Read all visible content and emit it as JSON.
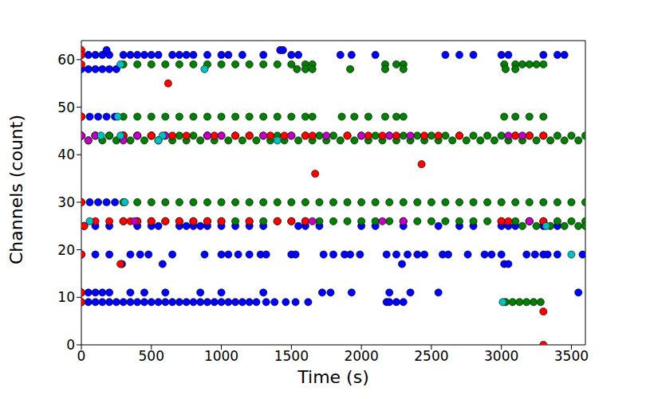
{
  "chart_data": {
    "type": "scatter",
    "xlabel": "Time (s)",
    "ylabel": "Channels (count)",
    "xlim": [
      0,
      3600
    ],
    "xticks": [
      0,
      500,
      1000,
      1500,
      2000,
      2500,
      3000,
      3500
    ],
    "ylim": [
      0,
      64
    ],
    "yticks": [
      0,
      10,
      20,
      30,
      40,
      50,
      60
    ],
    "marker": "circle",
    "grid": false,
    "series": [
      {
        "color": "#0000ff",
        "x": [
          0,
          50,
          100,
          150,
          200,
          300,
          350,
          400,
          450,
          500,
          550,
          650,
          700,
          750,
          800,
          900,
          1000,
          1050,
          1150,
          1300,
          1500,
          1550,
          1850,
          1930,
          2100,
          2600,
          2700,
          2800,
          3000,
          3050,
          3300,
          3400,
          3450,
          0,
          50,
          100,
          150,
          200,
          250,
          180,
          1420,
          1440,
          0,
          60,
          120,
          180,
          240,
          0,
          100,
          200,
          300,
          400,
          500,
          0,
          60,
          120,
          180,
          240,
          20,
          100,
          200,
          400,
          500,
          550,
          700,
          750,
          800,
          850,
          900,
          1000,
          1100,
          1200,
          1300,
          1550,
          1600,
          1700,
          2000,
          2100,
          2300,
          2550,
          2700,
          2800,
          3000,
          3050,
          3100,
          3300,
          3400,
          0,
          100,
          200,
          350,
          420,
          480,
          650,
          880,
          1000,
          1050,
          1120,
          1200,
          1280,
          1320,
          1500,
          1530,
          1730,
          1800,
          1880,
          1920,
          1990,
          2180,
          2250,
          2330,
          2400,
          2450,
          2580,
          2620,
          2760,
          2880,
          2930,
          3000,
          3180,
          3240,
          3300,
          3330,
          3400,
          3580,
          290,
          580,
          2290,
          3020,
          3050,
          0,
          50,
          100,
          150,
          200,
          350,
          450,
          600,
          850,
          1000,
          1300,
          1720,
          1780,
          1930,
          2200,
          2350,
          2550,
          3550,
          0,
          50,
          100,
          150,
          200,
          250,
          300,
          350,
          400,
          450,
          500,
          550,
          600,
          650,
          700,
          750,
          800,
          850,
          900,
          950,
          1000,
          1050,
          1100,
          1150,
          1200,
          1250,
          1320,
          1380,
          1460,
          1530,
          1620,
          2180,
          2200,
          2250,
          2300
        ],
        "values": [
          61,
          61,
          61,
          61,
          61,
          61,
          61,
          61,
          61,
          61,
          61,
          61,
          61,
          61,
          61,
          61,
          61,
          61,
          61,
          61,
          61,
          61,
          61,
          61,
          61,
          61,
          61,
          61,
          61,
          61,
          61,
          61,
          61,
          58,
          58,
          58,
          58,
          58,
          58,
          62,
          62,
          62,
          48,
          48,
          48,
          48,
          48,
          44,
          44,
          44,
          44,
          44,
          44,
          30,
          30,
          30,
          30,
          30,
          25,
          25,
          25,
          25,
          25,
          25,
          25,
          25,
          25,
          25,
          25,
          25,
          25,
          25,
          25,
          25,
          25,
          25,
          25,
          25,
          25,
          25,
          25,
          25,
          25,
          25,
          25,
          25,
          25,
          19,
          19,
          19,
          19,
          19,
          19,
          19,
          19,
          19,
          19,
          19,
          19,
          19,
          19,
          19,
          19,
          19,
          19,
          19,
          19,
          19,
          19,
          19,
          19,
          19,
          19,
          19,
          19,
          19,
          19,
          19,
          19,
          19,
          19,
          19,
          19,
          19,
          19,
          17,
          17,
          17,
          17,
          17,
          11,
          11,
          11,
          11,
          11,
          11,
          11,
          11,
          11,
          11,
          11,
          11,
          11,
          11,
          11,
          11,
          11,
          11,
          9,
          9,
          9,
          9,
          9,
          9,
          9,
          9,
          9,
          9,
          9,
          9,
          9,
          9,
          9,
          9,
          9,
          9,
          9,
          9,
          9,
          9,
          9,
          9,
          9,
          9,
          9,
          9,
          9,
          9,
          9,
          9,
          9,
          9,
          9
        ]
      },
      {
        "color": "#008000",
        "x": [
          300,
          400,
          500,
          600,
          700,
          800,
          900,
          1000,
          1100,
          1200,
          1300,
          1400,
          1500,
          1600,
          1650,
          2170,
          2250,
          2300,
          3020,
          3100,
          3150,
          3200,
          3250,
          3300,
          1540,
          1600,
          1650,
          1920,
          2170,
          2300,
          3030,
          3100,
          300,
          400,
          500,
          600,
          700,
          800,
          900,
          1000,
          1100,
          1200,
          1300,
          1400,
          1500,
          1600,
          1650,
          1860,
          1950,
          2050,
          2170,
          2250,
          2300,
          3020,
          3100,
          3200,
          3300,
          0,
          100,
          200,
          300,
          400,
          500,
          600,
          700,
          800,
          900,
          1000,
          1100,
          1200,
          1300,
          1400,
          1500,
          1600,
          1700,
          1800,
          1900,
          2000,
          2100,
          2200,
          2300,
          2400,
          2500,
          2600,
          2700,
          2800,
          2900,
          3000,
          3100,
          3200,
          3300,
          3400,
          3500,
          3600,
          50,
          150,
          250,
          350,
          450,
          550,
          650,
          750,
          850,
          950,
          1050,
          1150,
          1250,
          1350,
          1450,
          1550,
          1650,
          1750,
          1850,
          1950,
          2050,
          2150,
          2250,
          2350,
          2450,
          2550,
          2650,
          2750,
          2850,
          2950,
          3050,
          3150,
          3250,
          3350,
          3450,
          3550,
          300,
          400,
          500,
          600,
          700,
          800,
          900,
          1000,
          1100,
          1200,
          1300,
          1400,
          1500,
          1600,
          1700,
          1800,
          1900,
          2000,
          2100,
          2200,
          2300,
          2400,
          2500,
          2600,
          2700,
          2800,
          2900,
          3000,
          3100,
          3200,
          3300,
          3400,
          3500,
          3600,
          300,
          400,
          500,
          600,
          700,
          800,
          900,
          1000,
          1100,
          1200,
          1300,
          1400,
          1500,
          1600,
          1700,
          1800,
          1900,
          2000,
          2100,
          2200,
          2300,
          2400,
          2500,
          2600,
          2700,
          2800,
          2900,
          3000,
          3100,
          3200,
          3300,
          3400,
          3500,
          3600,
          3150,
          3250,
          3350,
          3450,
          3550,
          3600,
          3030,
          3080,
          3130,
          3180,
          3230,
          3280
        ],
        "values": [
          59,
          59,
          59,
          59,
          59,
          59,
          59,
          59,
          59,
          59,
          59,
          59,
          59,
          59,
          59,
          59,
          59,
          59,
          59,
          59,
          59,
          59,
          59,
          59,
          58,
          58,
          58,
          58,
          58,
          58,
          58,
          58,
          48,
          48,
          48,
          48,
          48,
          48,
          48,
          48,
          48,
          48,
          48,
          48,
          48,
          48,
          48,
          48,
          48,
          48,
          48,
          48,
          48,
          48,
          48,
          48,
          48,
          44,
          44,
          44,
          44,
          44,
          44,
          44,
          44,
          44,
          44,
          44,
          44,
          44,
          44,
          44,
          44,
          44,
          44,
          44,
          44,
          44,
          44,
          44,
          44,
          44,
          44,
          44,
          44,
          44,
          44,
          44,
          44,
          44,
          44,
          44,
          44,
          44,
          43,
          43,
          43,
          43,
          43,
          43,
          43,
          43,
          43,
          43,
          43,
          43,
          43,
          43,
          43,
          43,
          43,
          43,
          43,
          43,
          43,
          43,
          43,
          43,
          43,
          43,
          43,
          43,
          43,
          43,
          43,
          43,
          43,
          43,
          43,
          43,
          30,
          30,
          30,
          30,
          30,
          30,
          30,
          30,
          30,
          30,
          30,
          30,
          30,
          30,
          30,
          30,
          30,
          30,
          30,
          30,
          30,
          30,
          30,
          30,
          30,
          30,
          30,
          30,
          30,
          30,
          30,
          30,
          30,
          30,
          26,
          26,
          26,
          26,
          26,
          26,
          26,
          26,
          26,
          26,
          26,
          26,
          26,
          26,
          26,
          26,
          26,
          26,
          26,
          26,
          26,
          26,
          26,
          26,
          26,
          26,
          26,
          26,
          26,
          26,
          26,
          26,
          26,
          26,
          25,
          25,
          25,
          25,
          25,
          25,
          9,
          9,
          9,
          9,
          9,
          9
        ]
      },
      {
        "color": "#ff0000",
        "x": [
          0,
          0,
          0,
          620,
          0,
          0,
          300,
          500,
          650,
          750,
          900,
          950,
          1100,
          1200,
          1350,
          1450,
          1600,
          1650,
          1900,
          2050,
          2150,
          2250,
          2450,
          2550,
          2700,
          3100,
          3200,
          3300,
          1670,
          2430,
          0,
          100,
          200,
          300,
          350,
          400,
          500,
          600,
          700,
          800,
          900,
          1000,
          1200,
          1400,
          1500,
          1600,
          3000,
          3050,
          3200,
          3300,
          20,
          0,
          280,
          0,
          0,
          3300,
          3300
        ],
        "values": [
          62,
          61,
          59,
          55,
          48,
          44,
          44,
          44,
          44,
          44,
          44,
          44,
          44,
          44,
          44,
          44,
          44,
          44,
          44,
          44,
          44,
          44,
          44,
          44,
          44,
          44,
          44,
          44,
          36,
          38,
          30,
          26,
          26,
          26,
          26,
          26,
          26,
          26,
          26,
          26,
          26,
          26,
          26,
          26,
          26,
          26,
          26,
          26,
          26,
          26,
          25,
          19,
          17,
          11,
          9,
          7,
          0
        ]
      },
      {
        "color": "#bf00bf",
        "x": [
          0,
          100,
          400,
          600,
          900,
          1000,
          1300,
          1500,
          1750,
          2000,
          2200,
          2350,
          3050,
          3150,
          50,
          300,
          380,
          1650,
          2150,
          2300,
          3200
        ],
        "values": [
          44,
          44,
          44,
          44,
          44,
          44,
          44,
          44,
          44,
          44,
          44,
          44,
          44,
          44,
          43,
          43,
          26,
          26,
          26,
          26,
          26
        ]
      },
      {
        "color": "#00bfbf",
        "x": [
          280,
          880,
          260,
          140,
          280,
          580,
          550,
          1400,
          310,
          60,
          3320,
          3500,
          3010
        ],
        "values": [
          59,
          58,
          48,
          44,
          44,
          44,
          43,
          43,
          30,
          26,
          25,
          19,
          9
        ]
      }
    ]
  }
}
